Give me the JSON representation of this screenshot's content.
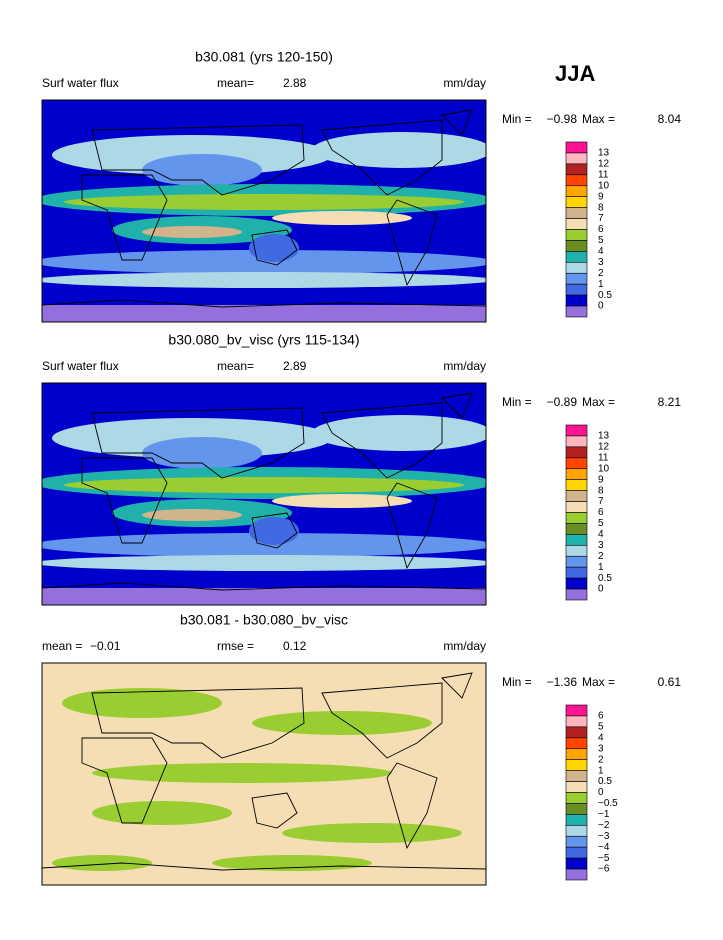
{
  "season": "JJA",
  "colorbar_colors": [
    "#ff1493",
    "#ffb6c1",
    "#b22222",
    "#ff4500",
    "#ffa500",
    "#ffd700",
    "#d2b48c",
    "#f5deb3",
    "#9acd32",
    "#6b8e23",
    "#20b2aa",
    "#add8e6",
    "#6495ed",
    "#4169e1",
    "#0000cd",
    "#9370db"
  ],
  "panels": [
    {
      "title": "b30.081 (yrs 120-150)",
      "field": "Surf water flux",
      "mean_label": "mean=",
      "mean": "2.88",
      "units": "mm/day",
      "min_label": "Min =",
      "min": "−0.98",
      "max_label": "Max =",
      "max": "8.04",
      "levels": [
        "13",
        "12",
        "11",
        "10",
        "9",
        "8",
        "7",
        "6",
        "5",
        "4",
        "3",
        "2",
        "1",
        "0.5",
        "0"
      ]
    },
    {
      "title": "b30.080_bv_visc (yrs 115-134)",
      "field": "Surf water flux",
      "mean_label": "mean=",
      "mean": "2.89",
      "units": "mm/day",
      "min_label": "Min =",
      "min": "−0.89",
      "max_label": "Max =",
      "max": "8.21",
      "levels": [
        "13",
        "12",
        "11",
        "10",
        "9",
        "8",
        "7",
        "6",
        "5",
        "4",
        "3",
        "2",
        "1",
        "0.5",
        "0"
      ]
    },
    {
      "title": "b30.081 - b30.080_bv_visc",
      "mean_label": "mean =",
      "mean": "−0.01",
      "rmse_label": "rmse =",
      "rmse": "0.12",
      "units": "mm/day",
      "min_label": "Min =",
      "min": "−1.36",
      "max_label": "Max =",
      "max": "0.61",
      "levels": [
        "6",
        "5",
        "4",
        "3",
        "2",
        "1",
        "0.5",
        "0",
        "−0.5",
        "−1",
        "−2",
        "−3",
        "−4",
        "−5",
        "−6"
      ]
    }
  ]
}
